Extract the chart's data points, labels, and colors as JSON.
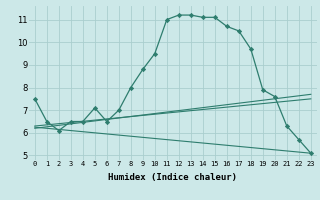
{
  "xlabel": "Humidex (Indice chaleur)",
  "bg_color": "#cce8e8",
  "grid_color": "#aacece",
  "line_color": "#2e7d6e",
  "xlim": [
    -0.5,
    23.5
  ],
  "ylim": [
    4.8,
    11.6
  ],
  "xtick_labels": [
    "0",
    "1",
    "2",
    "3",
    "4",
    "5",
    "6",
    "7",
    "8",
    "9",
    "10",
    "11",
    "12",
    "13",
    "14",
    "15",
    "16",
    "17",
    "18",
    "19",
    "20",
    "21",
    "22",
    "23"
  ],
  "ytick_labels": [
    "5",
    "6",
    "7",
    "8",
    "9",
    "10",
    "11"
  ],
  "yticks": [
    5,
    6,
    7,
    8,
    9,
    10,
    11
  ],
  "line1_x": [
    0,
    1,
    2,
    3,
    4,
    5,
    6,
    7,
    8,
    9,
    10,
    11,
    12,
    13,
    14,
    15,
    16,
    17,
    18,
    19,
    20,
    21,
    22,
    23
  ],
  "line1_y": [
    7.5,
    6.5,
    6.1,
    6.5,
    6.5,
    7.1,
    6.5,
    7.0,
    8.0,
    8.8,
    9.5,
    11.0,
    11.2,
    11.2,
    11.1,
    11.1,
    10.7,
    10.5,
    9.7,
    7.9,
    7.6,
    6.3,
    5.7,
    5.1
  ],
  "line2_x": [
    0,
    23
  ],
  "line2_y": [
    6.2,
    7.7
  ],
  "line3_x": [
    0,
    23
  ],
  "line3_y": [
    6.3,
    7.5
  ],
  "line4_x": [
    0,
    23
  ],
  "line4_y": [
    6.25,
    5.1
  ]
}
